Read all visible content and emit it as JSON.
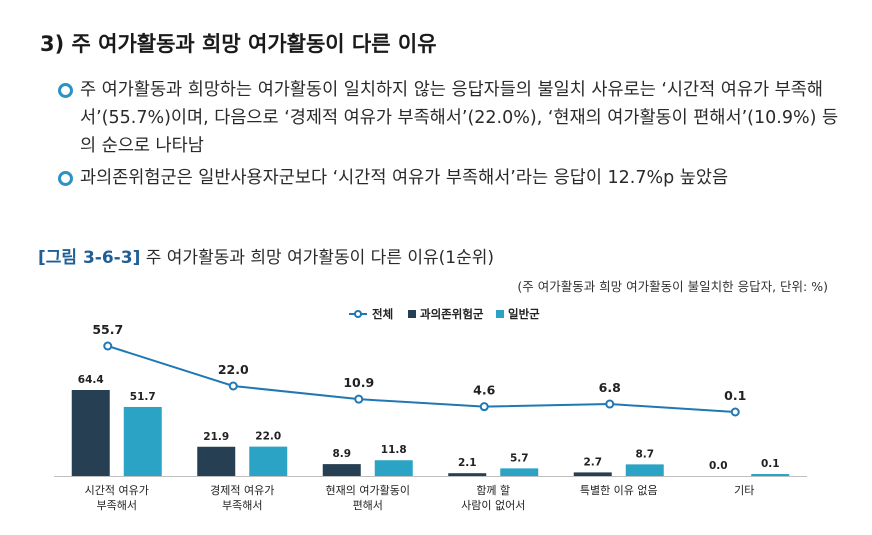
{
  "heading": "3) 주 여가활동과 희망 여가활동이 다른 이유",
  "bullets": [
    "주 여가활동과 희망하는 여가활동이 일치하지 않는 응답자들의 불일치 사유로는 ‘시간적 여유가 부족해서’(55.7%)이며, 다음으로 ‘경제적 여유가 부족해서’(22.0%), ‘현재의 여가활동이 편해서’(10.9%) 등의 순으로 나타남",
    "과의존위험군은 일반사용자군보다 ‘시간적 여유가 부족해서’라는 응답이 12.7%p 높았음"
  ],
  "figure": {
    "number": "[그림 3-6-3]",
    "title": "주 여가활동과 희망 여가활동이 다른 이유(1순위)",
    "note": "(주 여가활동과 희망 여가활동이 불일치한 응답자, 단위: %)"
  },
  "colors": {
    "line": "#1f78b4",
    "risk": "#263f53",
    "general": "#2aa3c5",
    "bullet": "#2b93c4",
    "fignum": "#1f5f95"
  },
  "chart_data": {
    "type": "bar",
    "categories": [
      [
        "시간적 여유가",
        "부족해서"
      ],
      [
        "경제적 여유가",
        "부족해서"
      ],
      [
        "현재의 여가활동이",
        "편해서"
      ],
      [
        "함께 할",
        "사람이 없어서"
      ],
      [
        "특별한 이유 없음"
      ],
      [
        "기타"
      ]
    ],
    "series": [
      {
        "name": "전체",
        "type": "line",
        "values": [
          55.7,
          22.0,
          10.9,
          4.6,
          6.8,
          0.1
        ]
      },
      {
        "name": "과의존위험군",
        "type": "bar",
        "values": [
          64.4,
          21.9,
          8.9,
          2.1,
          2.7,
          0.0
        ]
      },
      {
        "name": "일반군",
        "type": "bar",
        "values": [
          51.7,
          22.0,
          11.8,
          5.7,
          8.7,
          0.1
        ]
      }
    ],
    "legend_position": "top-center",
    "grid": false
  }
}
